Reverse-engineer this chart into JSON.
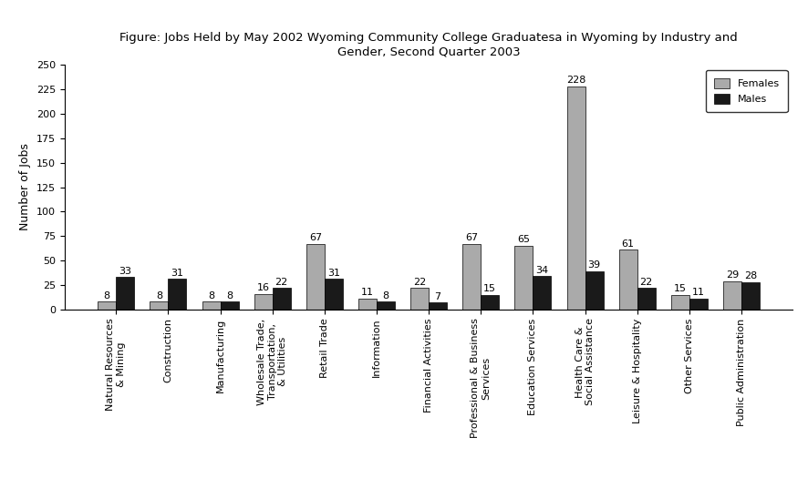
{
  "title_line1": "Figure: Jobs Held by May 2002 Wyoming Community College Graduates",
  "title_superscript": "a",
  "title_line2": " in Wyoming by Industry and",
  "title_line3": "Gender, Second Quarter 2003",
  "ylabel": "Number of Jobs",
  "ylim": [
    0,
    250
  ],
  "yticks": [
    0,
    25,
    50,
    75,
    100,
    125,
    150,
    175,
    200,
    225,
    250
  ],
  "categories": [
    "Natural Resources\n& Mining",
    "Construction",
    "Manufacturing",
    "Wholesale Trade,\nTransportation,\n& Utilities",
    "Retail Trade",
    "Information",
    "Financial Activities",
    "Professional & Business\nServices",
    "Education Services",
    "Health Care &\nSocial Assistance",
    "Leisure & Hospitality",
    "Other Services",
    "Public Administration"
  ],
  "females": [
    8,
    8,
    8,
    16,
    67,
    11,
    22,
    67,
    65,
    228,
    61,
    15,
    29
  ],
  "males": [
    33,
    31,
    8,
    22,
    31,
    8,
    7,
    15,
    34,
    39,
    22,
    11,
    28
  ],
  "female_color": "#aaaaaa",
  "male_color": "#1a1a1a",
  "bar_width": 0.35,
  "legend_labels": [
    "Females",
    "Males"
  ],
  "title_fontsize": 9.5,
  "axis_label_fontsize": 9,
  "tick_fontsize": 8,
  "annotation_fontsize": 8,
  "background_color": "#ffffff"
}
